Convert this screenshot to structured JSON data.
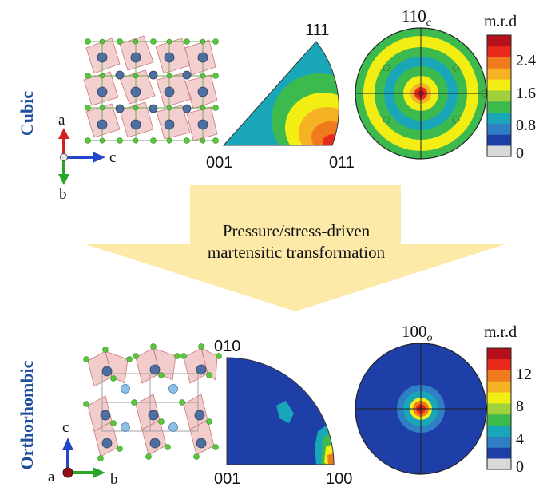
{
  "figure": {
    "cubic": {
      "phase_label": "Cubic",
      "axes": {
        "up": "a",
        "right": "c",
        "down": "b"
      },
      "ipf": {
        "corner_top": "111",
        "corner_left": "001",
        "corner_right": "011"
      },
      "pole_figure": {
        "label_base": "110",
        "label_sub": "c"
      },
      "colorbar": {
        "title": "m.r.d",
        "ticks": [
          "2.4",
          "1.6",
          "0.8",
          "0"
        ],
        "colors": [
          "#d9d9d9",
          "#1f3fa8",
          "#2f7fc4",
          "#19a6b8",
          "#3dba4d",
          "#9fd23a",
          "#f2ee14",
          "#f5b324",
          "#f07a1e",
          "#e8291c",
          "#b8101a"
        ]
      }
    },
    "transformation": {
      "line1": "Pressure/stress-driven",
      "line2": "martensitic transformation",
      "arrow_color": "#fde9a8"
    },
    "orthorhombic": {
      "phase_label": "Orthorhombic",
      "axes": {
        "up": "c",
        "left": "a",
        "right": "b"
      },
      "ipf": {
        "corner_top": "010",
        "corner_left": "001",
        "corner_right": "100"
      },
      "pole_figure": {
        "label_base": "100",
        "label_sub": "o"
      },
      "colorbar": {
        "title": "m.r.d",
        "ticks": [
          "12",
          "8",
          "4",
          "0"
        ],
        "colors": [
          "#d9d9d9",
          "#1f3fa8",
          "#2f7fc4",
          "#19a6b8",
          "#3dba4d",
          "#9fd23a",
          "#f2ee14",
          "#f5b324",
          "#f07a1e",
          "#e8291c",
          "#b8101a"
        ]
      }
    }
  }
}
